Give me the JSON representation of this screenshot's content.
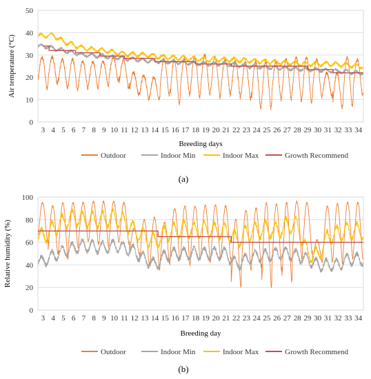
{
  "chart_data": [
    {
      "type": "line",
      "panel_label": "(a)",
      "xlabel": "Breeding days",
      "ylabel": "Air temperature (°C)",
      "xlim": [
        2.5,
        34.5
      ],
      "ylim": [
        0,
        50
      ],
      "yticks": [
        0,
        10,
        20,
        30,
        40,
        50
      ],
      "xticks": [
        3,
        4,
        5,
        6,
        7,
        8,
        9,
        10,
        11,
        12,
        13,
        14,
        15,
        16,
        17,
        18,
        19,
        20,
        21,
        22,
        23,
        24,
        25,
        26,
        27,
        28,
        29,
        30,
        31,
        32,
        33,
        34
      ],
      "grid": "horizontal",
      "legend_position": "bottom",
      "colors": {
        "Outdoor": "#ed7d31",
        "Indoor Min": "#a5a5a5",
        "Indoor Max": "#ffc000",
        "Growth Recommend": "#c0504d"
      },
      "series": [
        {
          "name": "Outdoor",
          "x": [
            3,
            4,
            5,
            6,
            7,
            8,
            9,
            10,
            11,
            12,
            13,
            14,
            15,
            16,
            17,
            18,
            19,
            20,
            21,
            22,
            23,
            24,
            25,
            26,
            27,
            28,
            29,
            30,
            31,
            32,
            33,
            34
          ],
          "min": [
            15,
            17,
            15,
            14,
            15,
            15,
            16,
            18,
            15,
            12,
            10,
            10,
            12,
            8,
            12,
            11,
            12,
            11,
            12,
            11,
            10,
            6,
            6,
            10,
            10,
            9,
            8,
            11,
            11,
            6,
            7,
            12
          ],
          "max": [
            29,
            29,
            28,
            28,
            27,
            27,
            27,
            29,
            28,
            22,
            21,
            20,
            28,
            28,
            28,
            29,
            30,
            29,
            28,
            27,
            27,
            27,
            27,
            27,
            28,
            29,
            29,
            28,
            22,
            22,
            29,
            28
          ]
        },
        {
          "name": "Indoor Min",
          "x": [
            3,
            5,
            7,
            9,
            11,
            13,
            15,
            17,
            19,
            21,
            23,
            25,
            27,
            29,
            31,
            33,
            34
          ],
          "y": [
            34,
            32,
            30,
            29.5,
            28.5,
            27.5,
            27,
            26.5,
            26,
            26,
            25,
            24.5,
            24,
            23.5,
            23,
            22.5,
            22
          ]
        },
        {
          "name": "Indoor Max",
          "x": [
            3,
            4,
            5,
            7,
            9,
            11,
            13,
            15,
            17,
            19,
            21,
            23,
            25,
            27,
            29,
            31,
            33,
            34
          ],
          "y": [
            38.5,
            39,
            36,
            33,
            32,
            30.5,
            30,
            29,
            28.5,
            28,
            28,
            27.5,
            27,
            26.5,
            26,
            26,
            25.5,
            25
          ]
        },
        {
          "name": "Growth Recommend",
          "x": [
            3,
            3.6,
            3.6,
            6.2,
            6.2,
            8.6,
            8.6,
            11,
            11,
            14,
            14,
            18,
            18,
            21.5,
            21.5,
            29,
            29,
            31.5,
            31.5,
            34.5
          ],
          "y": [
            34,
            34,
            32,
            32,
            31,
            31,
            29.5,
            29.5,
            28.5,
            28.5,
            27,
            27,
            26,
            26,
            25,
            25,
            23.5,
            23.5,
            22,
            22
          ]
        }
      ]
    },
    {
      "type": "line",
      "panel_label": "(b)",
      "xlabel": "Breeding day",
      "ylabel": "Relative humidity (%)",
      "xlim": [
        2.5,
        34.5
      ],
      "ylim": [
        0,
        100
      ],
      "yticks": [
        0,
        20,
        40,
        60,
        80,
        100
      ],
      "xticks": [
        3,
        4,
        5,
        6,
        7,
        8,
        9,
        10,
        11,
        12,
        13,
        14,
        15,
        16,
        17,
        18,
        19,
        20,
        21,
        22,
        23,
        24,
        25,
        26,
        27,
        28,
        29,
        30,
        31,
        32,
        33,
        34
      ],
      "grid": "horizontal",
      "legend_position": "bottom",
      "colors": {
        "Outdoor": "#ed7d31",
        "Indoor Min": "#a5a5a5",
        "Indoor Max": "#ffc000",
        "Growth Recommend": "#c0504d"
      },
      "series": [
        {
          "name": "Outdoor",
          "x": [
            3,
            4,
            5,
            6,
            7,
            8,
            9,
            10,
            11,
            12,
            13,
            14,
            15,
            16,
            17,
            18,
            19,
            20,
            21,
            22,
            23,
            24,
            25,
            26,
            27,
            28,
            29,
            30,
            31,
            32,
            33,
            34
          ],
          "min": [
            60,
            50,
            45,
            55,
            60,
            58,
            55,
            60,
            58,
            50,
            40,
            35,
            40,
            45,
            40,
            45,
            42,
            45,
            45,
            20,
            35,
            38,
            20,
            35,
            25,
            45,
            50,
            42,
            42,
            40,
            45,
            45
          ],
          "max": [
            95,
            92,
            95,
            95,
            95,
            96,
            96,
            96,
            95,
            72,
            80,
            82,
            78,
            90,
            92,
            92,
            93,
            93,
            92,
            80,
            88,
            90,
            95,
            94,
            95,
            96,
            95,
            62,
            92,
            94,
            95,
            95
          ]
        },
        {
          "name": "Indoor Min",
          "x": [
            3,
            4,
            5,
            6,
            7,
            8,
            9,
            10,
            11,
            12,
            13,
            14,
            15,
            16,
            17,
            18,
            19,
            20,
            21,
            22,
            23,
            24,
            25,
            26,
            27,
            28,
            29,
            30,
            31,
            32,
            33,
            34
          ],
          "y": [
            43,
            48,
            52,
            55,
            57,
            56,
            55,
            57,
            55,
            52,
            45,
            40,
            48,
            50,
            50,
            50,
            50,
            50,
            50,
            40,
            45,
            48,
            48,
            50,
            50,
            48,
            45,
            40,
            40,
            40,
            45,
            45
          ]
        },
        {
          "name": "Indoor Max",
          "x": [
            3,
            4,
            5,
            6,
            7,
            8,
            9,
            10,
            11,
            12,
            13,
            14,
            15,
            16,
            17,
            18,
            19,
            20,
            21,
            22,
            23,
            24,
            25,
            26,
            27,
            28,
            29,
            30,
            31,
            32,
            33,
            34
          ],
          "y": [
            65,
            72,
            78,
            82,
            80,
            80,
            80,
            82,
            78,
            70,
            65,
            60,
            68,
            70,
            72,
            70,
            72,
            70,
            70,
            62,
            68,
            70,
            72,
            70,
            75,
            75,
            50,
            48,
            65,
            68,
            70,
            70
          ]
        },
        {
          "name": "Growth Recommend",
          "x": [
            2.5,
            14.3,
            14.3,
            21.5,
            21.5,
            34.5
          ],
          "y": [
            70,
            70,
            65,
            65,
            60,
            60
          ]
        }
      ]
    }
  ]
}
